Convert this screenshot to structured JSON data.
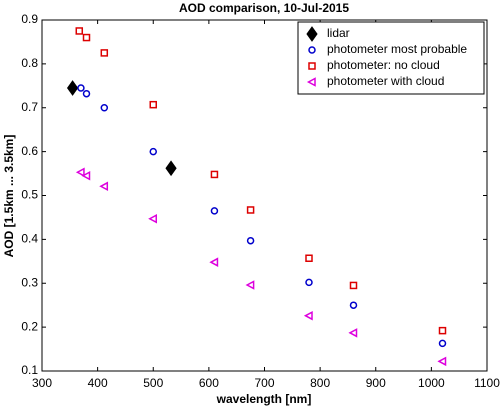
{
  "chart_data": {
    "type": "scatter",
    "title": "AOD comparison, 10-Jul-2015",
    "xlabel": "wavelength [nm]",
    "ylabel": "AOD [1.5km ... 3.5km]",
    "xlim": [
      300,
      1100
    ],
    "xticks": [
      300,
      400,
      500,
      600,
      700,
      800,
      900,
      1000,
      1100
    ],
    "ylim": [
      0.1,
      0.9
    ],
    "yticks": [
      0.1,
      0.2,
      0.3,
      0.4,
      0.5,
      0.6,
      0.7,
      0.8,
      0.9
    ],
    "grid": false,
    "legend": "upper right",
    "series": [
      {
        "name": "lidar",
        "color": "#000000",
        "marker": "diamond",
        "x": [
          355,
          532
        ],
        "values": [
          0.745,
          0.562
        ]
      },
      {
        "name": "photometer most probable",
        "color": "#0000cc",
        "marker": "circle",
        "x": [
          370,
          380,
          412,
          500,
          610,
          675,
          780,
          860,
          1020
        ],
        "values": [
          0.745,
          0.732,
          0.7,
          0.6,
          0.465,
          0.397,
          0.302,
          0.25,
          0.163
        ]
      },
      {
        "name": "photometer: no cloud",
        "color": "#dd0000",
        "marker": "square",
        "x": [
          367,
          380,
          412,
          500,
          610,
          675,
          780,
          860,
          1020
        ],
        "values": [
          0.875,
          0.86,
          0.825,
          0.707,
          0.548,
          0.467,
          0.357,
          0.295,
          0.192
        ]
      },
      {
        "name": "photometer with cloud",
        "color": "#dd00dd",
        "marker": "triangle-left",
        "x": [
          370,
          380,
          412,
          500,
          610,
          675,
          780,
          860,
          1020
        ],
        "values": [
          0.553,
          0.545,
          0.521,
          0.447,
          0.348,
          0.296,
          0.226,
          0.187,
          0.122
        ]
      }
    ]
  }
}
